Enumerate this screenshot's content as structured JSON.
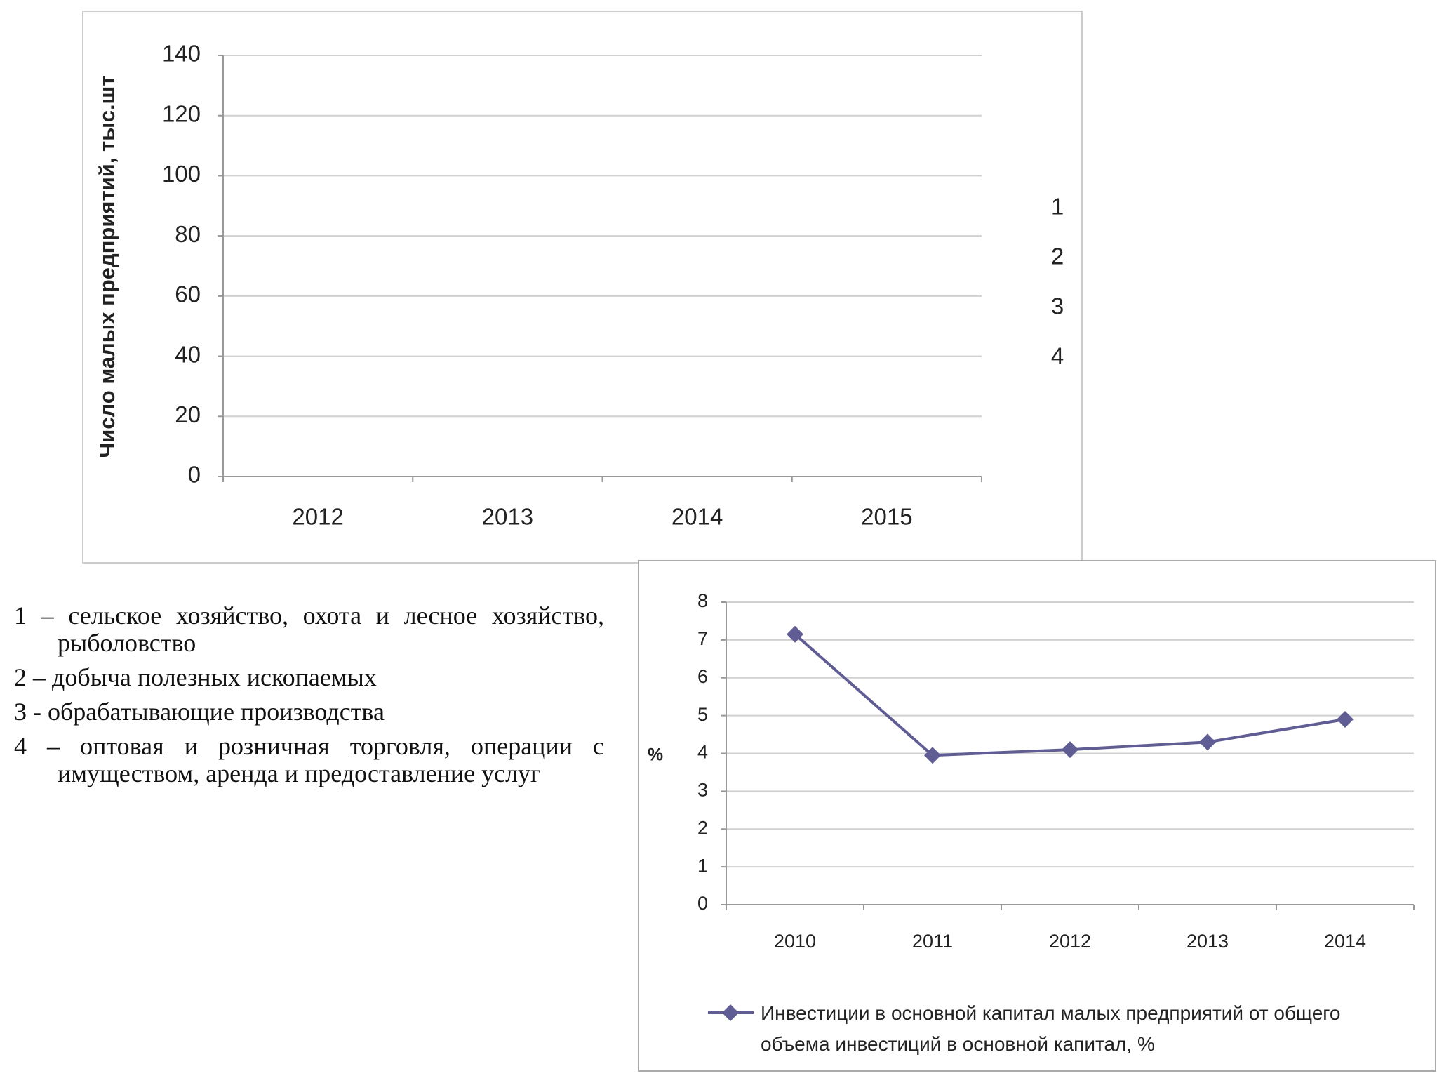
{
  "chart_data": [
    {
      "type": "bar",
      "y_label": "Число малых предприятий, тыс.шт",
      "categories": [
        "2012",
        "2013",
        "2014",
        "2015"
      ],
      "series": [
        {
          "name": "1",
          "values": [
            null,
            null,
            null,
            null
          ]
        },
        {
          "name": "2",
          "values": [
            null,
            null,
            null,
            null
          ]
        },
        {
          "name": "3",
          "values": [
            null,
            null,
            null,
            null
          ]
        },
        {
          "name": "4",
          "values": [
            null,
            null,
            null,
            null
          ]
        }
      ],
      "ylim": [
        0,
        140
      ],
      "yticks": [
        0,
        20,
        40,
        60,
        80,
        100,
        120,
        140
      ],
      "grid": true,
      "legend": "right"
    },
    {
      "type": "line",
      "y_label": "%",
      "categories": [
        "2010",
        "2011",
        "2012",
        "2013",
        "2014"
      ],
      "series": [
        {
          "name": "Инвестиции в основной капитал малых предприятий от общего объема инвестиций в основной капитал, %",
          "color": "#605d94",
          "values": [
            7.15,
            3.95,
            4.1,
            4.3,
            4.9
          ]
        }
      ],
      "ylim": [
        0,
        8
      ],
      "yticks": [
        0,
        1,
        2,
        3,
        4,
        5,
        6,
        7,
        8
      ],
      "grid": true,
      "legend": "bottom"
    }
  ],
  "notes": [
    "1 – сельское хозяйство, охота и лесное хозяйство, рыболовство",
    "2 – добыча полезных ископаемых",
    "3 - обрабатывающие производства",
    "4 – оптовая и розничная торговля, операции с имуществом, аренда и предоставление услуг"
  ]
}
